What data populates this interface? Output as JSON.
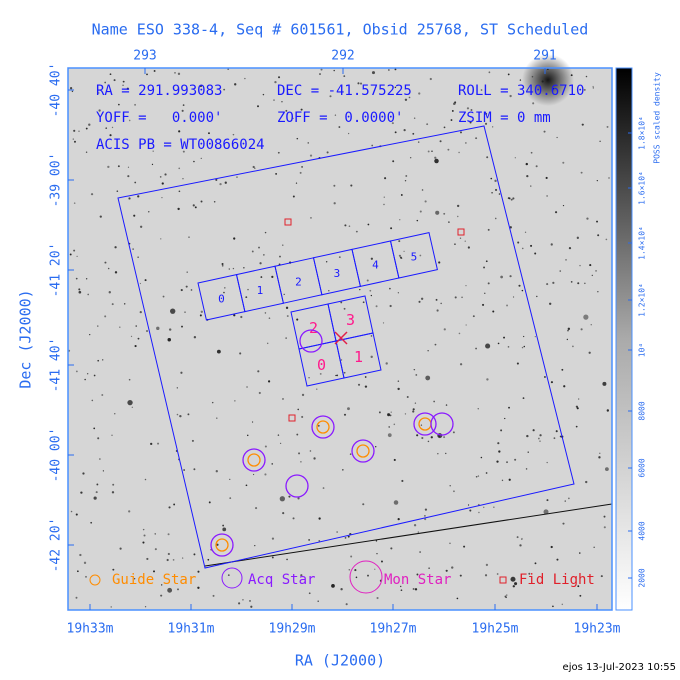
{
  "header": {
    "title": "Name ESO 338-4, Seq # 601561, Obsid 25768, ST Scheduled"
  },
  "axes": {
    "top": [
      "293",
      "292",
      "291"
    ],
    "left": [
      "-40 40'",
      "-39 00'",
      "-41 20'",
      "-41 40'",
      "-40 00'",
      "-42 20'"
    ],
    "bottom": [
      "19h33m",
      "19h31m",
      "19h29m",
      "19h27m",
      "19h25m",
      "19h23m"
    ],
    "x_title": "RA (J2000)",
    "y_title": "Dec (J2000)"
  },
  "info": [
    "RA = 291.993083",
    "DEC = -41.575225",
    "ROLL = 340.6710",
    "YOFF =   0.000'",
    "ZOFF =  0.0000'",
    "ZSIM = 0 mm",
    "ACIS PB = WT00866024"
  ],
  "colorbar": {
    "ticks": [
      "2000",
      "4000",
      "6000",
      "8000",
      "10⁴",
      "1.2×10⁴",
      "1.4×10⁴",
      "1.6×10⁴",
      "1.8×10⁴"
    ],
    "title": "POSS scaled density"
  },
  "chips": {
    "s_array": [
      "0",
      "1",
      "2",
      "3",
      "4",
      "5"
    ],
    "i_array": [
      "2",
      "3",
      "0",
      "1"
    ]
  },
  "legend": [
    "Guide Star",
    "Acq Star",
    "Mon Star",
    "Fid Light"
  ],
  "footer": "ejos 13-Jul-2023 10:55"
}
